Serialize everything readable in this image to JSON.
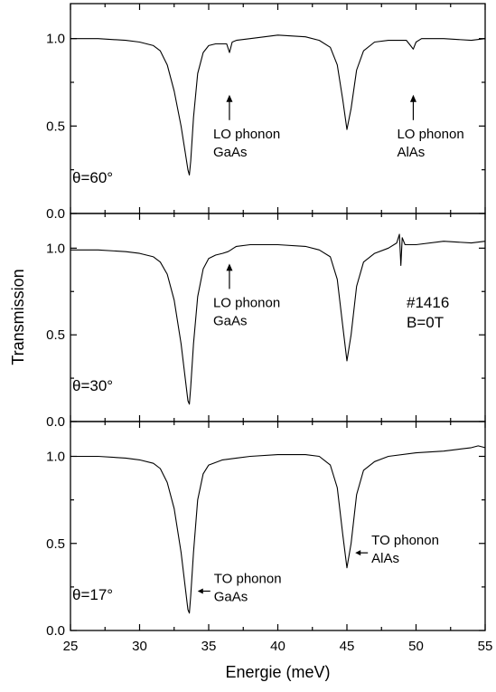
{
  "chart_data": {
    "type": "line",
    "xlabel": "Energie (meV)",
    "ylabel": "Transmission",
    "xlim": [
      25,
      55
    ],
    "x_ticks": [
      "25",
      "30",
      "35",
      "40",
      "45",
      "50",
      "55"
    ],
    "ylim": [
      0,
      1.2
    ],
    "y_ticks": [
      "0.0",
      "0.5",
      "1.0"
    ],
    "sample_label": "#1416",
    "field_label": "B=0T",
    "panels": [
      {
        "theta": "θ=60°",
        "series": [
          {
            "x": [
              25,
              27,
              29,
              30,
              31,
              31.5,
              32,
              32.5,
              33,
              33.3,
              33.5,
              33.6,
              33.7,
              33.9,
              34.2,
              34.6,
              35,
              35.5,
              36,
              36.3,
              36.5,
              36.7,
              37,
              38,
              40,
              42,
              43,
              43.8,
              44.3,
              44.7,
              45,
              45.3,
              45.7,
              46.2,
              47,
              48,
              49.3,
              49.6,
              49.8,
              50,
              50.4,
              52,
              54,
              55
            ],
            "y": [
              1.0,
              1.0,
              0.99,
              0.98,
              0.96,
              0.93,
              0.85,
              0.7,
              0.5,
              0.35,
              0.25,
              0.22,
              0.3,
              0.55,
              0.8,
              0.92,
              0.96,
              0.97,
              0.97,
              0.97,
              0.92,
              0.98,
              0.99,
              1.0,
              1.02,
              1.01,
              0.99,
              0.95,
              0.85,
              0.65,
              0.48,
              0.6,
              0.82,
              0.93,
              0.98,
              0.99,
              0.99,
              0.96,
              0.94,
              0.98,
              1.0,
              1.0,
              0.99,
              1.0
            ]
          }
        ],
        "annotations": [
          {
            "x": 36.5,
            "y_text": 0.42,
            "lines": [
              "LO phonon",
              "GaAs"
            ]
          },
          {
            "x": 49.8,
            "y_text": 0.42,
            "lines": [
              "LO phonon",
              "AlAs"
            ]
          }
        ]
      },
      {
        "theta": "θ=30°",
        "series": [
          {
            "x": [
              25,
              27,
              29,
              30,
              31,
              31.5,
              32,
              32.5,
              33,
              33.3,
              33.5,
              33.6,
              33.7,
              33.9,
              34.2,
              34.6,
              35,
              35.5,
              36,
              36.4,
              36.6,
              36.8,
              37,
              38,
              40,
              42,
              43,
              43.8,
              44.3,
              44.7,
              45,
              45.3,
              45.7,
              46.2,
              47,
              48,
              48.6,
              48.8,
              48.9,
              49.0,
              49.2,
              50,
              52,
              54,
              55
            ],
            "y": [
              0.99,
              0.99,
              0.98,
              0.97,
              0.95,
              0.92,
              0.85,
              0.7,
              0.45,
              0.25,
              0.12,
              0.1,
              0.2,
              0.45,
              0.72,
              0.88,
              0.94,
              0.96,
              0.97,
              0.98,
              0.99,
              1.0,
              1.01,
              1.02,
              1.02,
              1.01,
              0.99,
              0.95,
              0.82,
              0.55,
              0.35,
              0.5,
              0.78,
              0.92,
              0.97,
              1.0,
              1.03,
              1.08,
              0.9,
              1.06,
              1.02,
              1.02,
              1.04,
              1.03,
              1.04
            ]
          }
        ],
        "annotations": [
          {
            "x": 36.5,
            "y_text": 0.65,
            "lines": [
              "LO phonon",
              "GaAs"
            ]
          }
        ]
      },
      {
        "theta": "θ=17°",
        "series": [
          {
            "x": [
              25,
              27,
              29,
              30,
              31,
              31.5,
              32,
              32.5,
              33,
              33.3,
              33.5,
              33.6,
              33.7,
              33.9,
              34.2,
              34.6,
              35,
              36,
              37,
              38,
              40,
              42,
              43,
              43.8,
              44.3,
              44.7,
              45,
              45.3,
              45.7,
              46.2,
              47,
              48,
              50,
              52,
              53,
              54,
              54.5,
              55
            ],
            "y": [
              1.0,
              1.0,
              0.99,
              0.98,
              0.96,
              0.93,
              0.85,
              0.7,
              0.45,
              0.25,
              0.12,
              0.1,
              0.2,
              0.45,
              0.75,
              0.9,
              0.95,
              0.98,
              0.99,
              1.0,
              1.01,
              1.01,
              1.0,
              0.95,
              0.82,
              0.55,
              0.36,
              0.5,
              0.78,
              0.92,
              0.97,
              1.0,
              1.02,
              1.03,
              1.04,
              1.05,
              1.06,
              1.05
            ]
          }
        ],
        "annotations": [
          {
            "x": 34.2,
            "y_text": 0.2,
            "side": "right",
            "lines": [
              "TO phonon",
              "GaAs"
            ]
          },
          {
            "x": 45.6,
            "y_text": 0.42,
            "side": "right",
            "lines": [
              "TO phonon",
              "AlAs"
            ]
          }
        ]
      }
    ]
  }
}
